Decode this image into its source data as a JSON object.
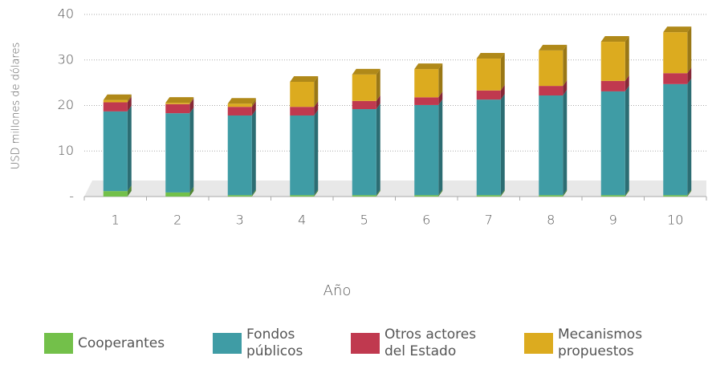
{
  "chart_data": {
    "type": "stacked-bar-3d",
    "ylabel": "USD millones de dólares",
    "xlabel": "Año",
    "categories": [
      "1",
      "2",
      "3",
      "4",
      "5",
      "6",
      "7",
      "8",
      "9",
      "10"
    ],
    "series": [
      {
        "name": "Cooperantes",
        "color": "#73c04a",
        "values": [
          1.2,
          0.9,
          0.3,
          0.3,
          0.3,
          0.3,
          0.3,
          0.3,
          0.3,
          0.3
        ]
      },
      {
        "name": "Fondos públicos",
        "color": "#3f9ca5",
        "values": [
          17.5,
          17.4,
          17.5,
          17.5,
          18.9,
          19.8,
          21.0,
          21.9,
          22.8,
          24.4
        ]
      },
      {
        "name": "Otros actores del Estado",
        "color": "#c0394f",
        "values": [
          2.0,
          2.0,
          1.9,
          1.9,
          1.8,
          1.7,
          2.0,
          2.1,
          2.3,
          2.4
        ]
      },
      {
        "name": "Mecanismos propuestos",
        "color": "#dcab1f",
        "values": [
          0.5,
          0.3,
          0.7,
          5.5,
          5.8,
          6.2,
          7.0,
          7.8,
          8.6,
          9.0
        ]
      }
    ],
    "ylim": [
      0,
      40
    ],
    "yticks": [
      {
        "value": 0,
        "label": "-"
      },
      10,
      20,
      30,
      40
    ],
    "grid": true
  }
}
